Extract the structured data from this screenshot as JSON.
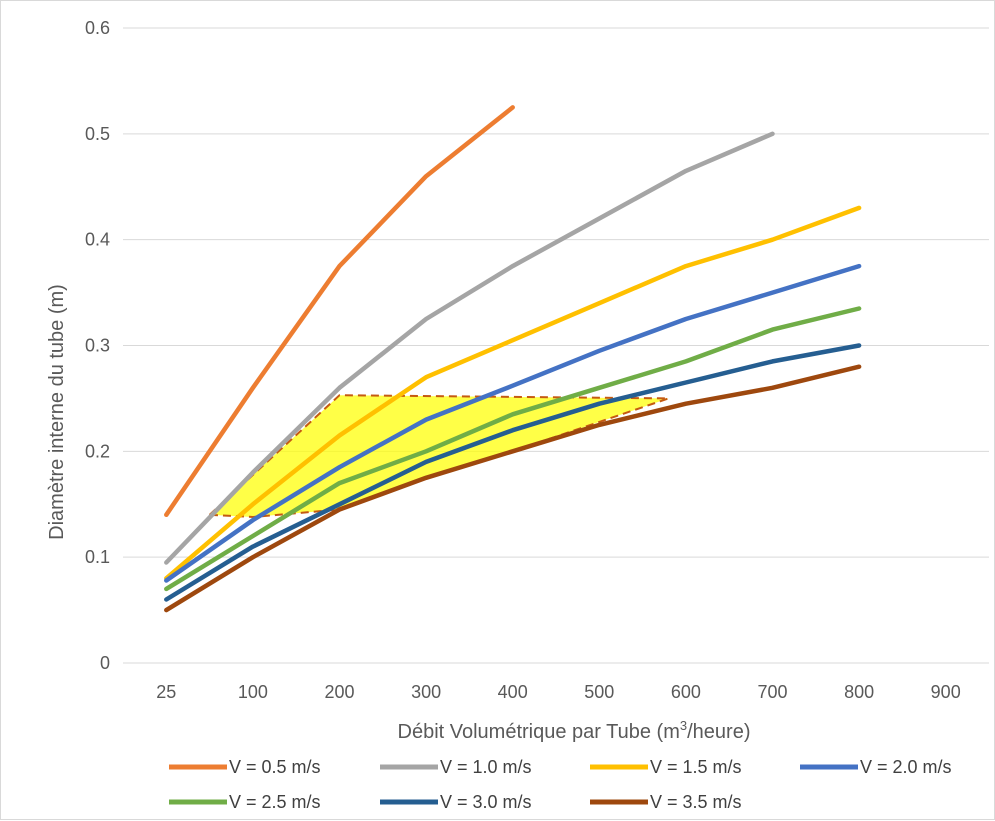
{
  "chart_data": {
    "type": "line",
    "categories": [
      "25",
      "100",
      "200",
      "300",
      "400",
      "500",
      "600",
      "700",
      "800",
      "900"
    ],
    "xlabel": "Débit Volumétrique par Tube (m³/heure)",
    "xlabel_main": "Débit Volumétrique par Tube (m",
    "xlabel_sup": "3",
    "xlabel_end": "/heure)",
    "ylabel": "Diamètre interne du tube (m)",
    "ylim": [
      0,
      0.6
    ],
    "yticks": [
      "0",
      "0.1",
      "0.2",
      "0.3",
      "0.4",
      "0.5",
      "0.6"
    ],
    "grid": true,
    "legend_position": "bottom",
    "series": [
      {
        "name": "V = 0.5 m/s",
        "color": "#ED7D31",
        "values": [
          0.14,
          0.26,
          0.375,
          0.46,
          0.525,
          null,
          null,
          null,
          null,
          null
        ]
      },
      {
        "name": "V = 1.0 m/s",
        "color": "#A5A5A5",
        "values": [
          0.095,
          0.18,
          0.26,
          0.325,
          0.375,
          0.42,
          0.465,
          0.5,
          null,
          null
        ]
      },
      {
        "name": "V = 1.5 m/s",
        "color": "#FFC000",
        "values": [
          0.08,
          0.15,
          0.215,
          0.27,
          0.305,
          0.34,
          0.375,
          0.4,
          0.43,
          null
        ]
      },
      {
        "name": "V = 2.0 m/s",
        "color": "#4472C4",
        "values": [
          0.078,
          0.135,
          0.185,
          0.23,
          0.262,
          0.295,
          0.325,
          0.35,
          0.375,
          null
        ]
      },
      {
        "name": "V = 2.5 m/s",
        "color": "#70AD47",
        "values": [
          0.07,
          0.12,
          0.17,
          0.2,
          0.235,
          0.26,
          0.285,
          0.315,
          0.335,
          null
        ]
      },
      {
        "name": "V = 3.0 m/s",
        "color": "#255E91",
        "values": [
          0.06,
          0.11,
          0.15,
          0.19,
          0.22,
          0.245,
          0.265,
          0.285,
          0.3,
          null
        ]
      },
      {
        "name": "V = 3.5 m/s",
        "color": "#9E480E",
        "values": [
          0.05,
          0.1,
          0.145,
          0.175,
          0.2,
          0.225,
          0.245,
          0.26,
          0.28,
          null
        ]
      }
    ],
    "highlight_region": {
      "fill": "#FFFF00",
      "border_color": "#C55A11",
      "border_style": "dashed",
      "points": [
        [
          0.5,
          0.14
        ],
        [
          2,
          0.253
        ],
        [
          5.8,
          0.25
        ],
        [
          4,
          0.2
        ],
        [
          3,
          0.175
        ],
        [
          2,
          0.145
        ],
        [
          1,
          0.138
        ]
      ]
    }
  }
}
